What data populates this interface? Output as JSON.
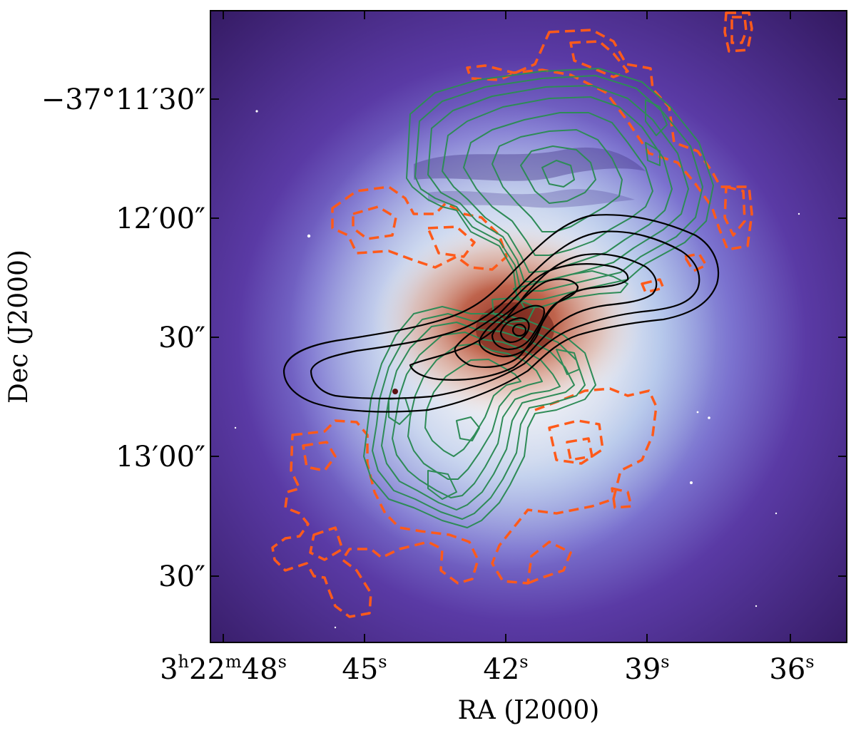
{
  "figure": {
    "x_axis": {
      "title": "RA (J2000)",
      "ticks": [
        {
          "main": "3",
          "sup1": "h",
          "mid": "22",
          "sup2": "m",
          "end": "48",
          "sup3": "s"
        },
        {
          "main": "45",
          "sup1": "s"
        },
        {
          "main": "42",
          "sup1": "s"
        },
        {
          "main": "39",
          "sup1": "s"
        },
        {
          "main": "36",
          "sup1": "s"
        }
      ]
    },
    "y_axis": {
      "title": "Dec (J2000)",
      "ticks": [
        "−37°11′30″",
        "12′00″",
        "30″",
        "13′00″",
        "30″"
      ]
    },
    "colors": {
      "background_outer": "#3b1f72",
      "background_mid": "#5e3aa8",
      "halo": "#a9c2ea",
      "core": "#b4472c",
      "green_contours": "#2e8b57",
      "orange_dashed_contours": "#ff5a1a",
      "black_contours": "#000000"
    }
  }
}
